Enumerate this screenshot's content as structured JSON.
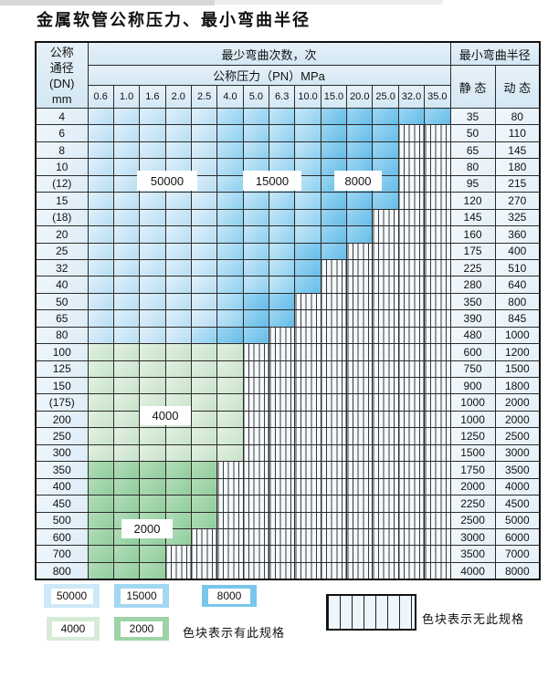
{
  "title": "金属软管公称压力、最小弯曲半径",
  "table": {
    "header": {
      "dn_lines": [
        "公称",
        "通径",
        "(DN)",
        "mm"
      ],
      "bend_cycles_label": "最少弯曲次数，次",
      "pressure_label": "公称压力（PN）MPa",
      "min_radius_label": "最小弯曲半径",
      "static_label": "静 态",
      "dynamic_label": "动 态",
      "pressures": [
        "0.6",
        "1.0",
        "1.6",
        "2.0",
        "2.5",
        "4.0",
        "5.0",
        "6.3",
        "10.0",
        "15.0",
        "20.0",
        "25.0",
        "32.0",
        "35.0"
      ]
    },
    "categories": {
      "a": {
        "label": "50000",
        "color": "#c9e6f7"
      },
      "b": {
        "label": "15000",
        "color": "#9ed6f1"
      },
      "c": {
        "label": "8000",
        "color": "#74c4eb"
      },
      "d": {
        "label": "4000",
        "color": "#d7ebd9"
      },
      "e": {
        "label": "2000",
        "color": "#9dd3a7"
      },
      "x": {
        "label": "无此规格",
        "color": "#f4f9fd"
      }
    },
    "rows": [
      {
        "dn": "4",
        "static": "35",
        "dynamic": "80",
        "cells": [
          "a",
          "a",
          "a",
          "a",
          "a",
          "b",
          "b",
          "b",
          "b",
          "c",
          "c",
          "c",
          "c",
          "c"
        ]
      },
      {
        "dn": "6",
        "static": "50",
        "dynamic": "110",
        "cells": [
          "a",
          "a",
          "a",
          "a",
          "a",
          "b",
          "b",
          "b",
          "b",
          "c",
          "c",
          "c",
          "x",
          "x"
        ]
      },
      {
        "dn": "8",
        "static": "65",
        "dynamic": "145",
        "cells": [
          "a",
          "a",
          "a",
          "a",
          "a",
          "b",
          "b",
          "b",
          "b",
          "c",
          "c",
          "c",
          "x",
          "x"
        ]
      },
      {
        "dn": "10",
        "static": "80",
        "dynamic": "180",
        "cells": [
          "a",
          "a",
          "a",
          "a",
          "a",
          "b",
          "b",
          "b",
          "b",
          "c",
          "c",
          "c",
          "x",
          "x"
        ]
      },
      {
        "dn": "(12)",
        "static": "95",
        "dynamic": "215",
        "cells": [
          "a",
          "a",
          "a",
          "a",
          "a",
          "b",
          "b",
          "b",
          "b",
          "c",
          "c",
          "c",
          "x",
          "x"
        ]
      },
      {
        "dn": "15",
        "static": "120",
        "dynamic": "270",
        "cells": [
          "a",
          "a",
          "a",
          "a",
          "a",
          "b",
          "b",
          "b",
          "b",
          "c",
          "c",
          "c",
          "x",
          "x"
        ]
      },
      {
        "dn": "(18)",
        "static": "145",
        "dynamic": "325",
        "cells": [
          "a",
          "a",
          "a",
          "a",
          "a",
          "b",
          "b",
          "b",
          "b",
          "c",
          "c",
          "x",
          "x",
          "x"
        ]
      },
      {
        "dn": "20",
        "static": "160",
        "dynamic": "360",
        "cells": [
          "a",
          "a",
          "a",
          "a",
          "a",
          "b",
          "b",
          "b",
          "b",
          "c",
          "c",
          "x",
          "x",
          "x"
        ]
      },
      {
        "dn": "25",
        "static": "175",
        "dynamic": "400",
        "cells": [
          "a",
          "a",
          "a",
          "a",
          "a",
          "b",
          "b",
          "b",
          "c",
          "c",
          "x",
          "x",
          "x",
          "x"
        ]
      },
      {
        "dn": "32",
        "static": "225",
        "dynamic": "510",
        "cells": [
          "a",
          "a",
          "a",
          "a",
          "a",
          "b",
          "b",
          "b",
          "c",
          "x",
          "x",
          "x",
          "x",
          "x"
        ]
      },
      {
        "dn": "40",
        "static": "280",
        "dynamic": "640",
        "cells": [
          "a",
          "a",
          "a",
          "a",
          "a",
          "b",
          "b",
          "b",
          "c",
          "x",
          "x",
          "x",
          "x",
          "x"
        ]
      },
      {
        "dn": "50",
        "static": "350",
        "dynamic": "800",
        "cells": [
          "a",
          "a",
          "a",
          "a",
          "a",
          "b",
          "c",
          "c",
          "x",
          "x",
          "x",
          "x",
          "x",
          "x"
        ]
      },
      {
        "dn": "65",
        "static": "390",
        "dynamic": "845",
        "cells": [
          "a",
          "a",
          "a",
          "a",
          "a",
          "b",
          "c",
          "c",
          "x",
          "x",
          "x",
          "x",
          "x",
          "x"
        ]
      },
      {
        "dn": "80",
        "static": "480",
        "dynamic": "1000",
        "cells": [
          "a",
          "a",
          "a",
          "a",
          "b",
          "c",
          "c",
          "x",
          "x",
          "x",
          "x",
          "x",
          "x",
          "x"
        ]
      },
      {
        "dn": "100",
        "static": "600",
        "dynamic": "1200",
        "cells": [
          "d",
          "d",
          "d",
          "d",
          "d",
          "d",
          "x",
          "x",
          "x",
          "x",
          "x",
          "x",
          "x",
          "x"
        ]
      },
      {
        "dn": "125",
        "static": "750",
        "dynamic": "1500",
        "cells": [
          "d",
          "d",
          "d",
          "d",
          "d",
          "d",
          "x",
          "x",
          "x",
          "x",
          "x",
          "x",
          "x",
          "x"
        ]
      },
      {
        "dn": "150",
        "static": "900",
        "dynamic": "1800",
        "cells": [
          "d",
          "d",
          "d",
          "d",
          "d",
          "d",
          "x",
          "x",
          "x",
          "x",
          "x",
          "x",
          "x",
          "x"
        ]
      },
      {
        "dn": "(175)",
        "static": "1000",
        "dynamic": "2000",
        "cells": [
          "d",
          "d",
          "d",
          "d",
          "d",
          "d",
          "x",
          "x",
          "x",
          "x",
          "x",
          "x",
          "x",
          "x"
        ]
      },
      {
        "dn": "200",
        "static": "1000",
        "dynamic": "2000",
        "cells": [
          "d",
          "d",
          "d",
          "d",
          "d",
          "d",
          "x",
          "x",
          "x",
          "x",
          "x",
          "x",
          "x",
          "x"
        ]
      },
      {
        "dn": "250",
        "static": "1250",
        "dynamic": "2500",
        "cells": [
          "d",
          "d",
          "d",
          "d",
          "d",
          "d",
          "x",
          "x",
          "x",
          "x",
          "x",
          "x",
          "x",
          "x"
        ]
      },
      {
        "dn": "300",
        "static": "1500",
        "dynamic": "3000",
        "cells": [
          "d",
          "d",
          "d",
          "d",
          "d",
          "d",
          "x",
          "x",
          "x",
          "x",
          "x",
          "x",
          "x",
          "x"
        ]
      },
      {
        "dn": "350",
        "static": "1750",
        "dynamic": "3500",
        "cells": [
          "e",
          "e",
          "e",
          "e",
          "e",
          "x",
          "x",
          "x",
          "x",
          "x",
          "x",
          "x",
          "x",
          "x"
        ]
      },
      {
        "dn": "400",
        "static": "2000",
        "dynamic": "4000",
        "cells": [
          "e",
          "e",
          "e",
          "e",
          "e",
          "x",
          "x",
          "x",
          "x",
          "x",
          "x",
          "x",
          "x",
          "x"
        ]
      },
      {
        "dn": "450",
        "static": "2250",
        "dynamic": "4500",
        "cells": [
          "e",
          "e",
          "e",
          "e",
          "e",
          "x",
          "x",
          "x",
          "x",
          "x",
          "x",
          "x",
          "x",
          "x"
        ]
      },
      {
        "dn": "500",
        "static": "2500",
        "dynamic": "5000",
        "cells": [
          "e",
          "e",
          "e",
          "e",
          "e",
          "x",
          "x",
          "x",
          "x",
          "x",
          "x",
          "x",
          "x",
          "x"
        ]
      },
      {
        "dn": "600",
        "static": "3000",
        "dynamic": "6000",
        "cells": [
          "e",
          "e",
          "e",
          "e",
          "x",
          "x",
          "x",
          "x",
          "x",
          "x",
          "x",
          "x",
          "x",
          "x"
        ]
      },
      {
        "dn": "700",
        "static": "3500",
        "dynamic": "7000",
        "cells": [
          "e",
          "e",
          "e",
          "x",
          "x",
          "x",
          "x",
          "x",
          "x",
          "x",
          "x",
          "x",
          "x",
          "x"
        ]
      },
      {
        "dn": "800",
        "static": "4000",
        "dynamic": "8000",
        "cells": [
          "e",
          "e",
          "e",
          "x",
          "x",
          "x",
          "x",
          "x",
          "x",
          "x",
          "x",
          "x",
          "x",
          "x"
        ]
      }
    ]
  },
  "overlays": {
    "l50000": "50000",
    "l15000": "15000",
    "l8000": "8000",
    "l4000": "4000",
    "l2000": "2000"
  },
  "legend": {
    "items": [
      {
        "label": "50000"
      },
      {
        "label": "15000"
      },
      {
        "label": "8000"
      },
      {
        "label": "4000"
      },
      {
        "label": "2000"
      }
    ],
    "has_spec_text": "色块表示有此规格",
    "no_spec_text": "色块表示无此规格"
  }
}
